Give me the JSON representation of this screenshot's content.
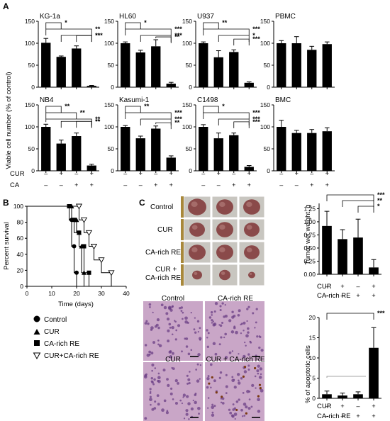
{
  "panel_labels": {
    "a": "A",
    "b": "B",
    "c": "C"
  },
  "panel_a": {
    "ylabel": "Viable cell number (% of control)",
    "yticks": [
      "0",
      "50",
      "100",
      "150"
    ],
    "row_labels": [
      "CUR",
      "CA"
    ],
    "signs": {
      "CUR": [
        "–",
        "+",
        "–",
        "+"
      ],
      "CA": [
        "–",
        "–",
        "+",
        "+"
      ]
    }
  },
  "panel_b": {
    "ylabel": "Percent survival",
    "xlabel": "Time (days)",
    "xticks": [
      "0",
      "10",
      "20",
      "30",
      "40"
    ],
    "yticks": [
      "0",
      "20",
      "40",
      "60",
      "80",
      "100"
    ],
    "legend": [
      {
        "label": "Control",
        "marker": "circle"
      },
      {
        "label": "CUR",
        "marker": "triangle-up"
      },
      {
        "label": "CA-rich RE",
        "marker": "square"
      },
      {
        "label": "CUR+CA-rich RE",
        "marker": "triangle-down-open"
      }
    ]
  },
  "panel_c": {
    "row_labels": [
      "Control",
      "CUR",
      "CA-rich RE",
      "CUR +",
      "CA-rich RE"
    ],
    "histology_labels": [
      "Control",
      "CA-rich RE",
      "CUR",
      "CUR + CA-rich RE"
    ],
    "weight_ylabel": "Tumor wet weight, g",
    "weight_yticks": [
      "0.00",
      "0.25",
      "0.50",
      "0.75",
      "1.00",
      "1.25"
    ],
    "apop_ylabel": "% of apoptotic cells",
    "apop_yticks": [
      "0",
      "5",
      "10",
      "15",
      "20"
    ],
    "row_labels_sign": [
      "CUR",
      "CA-rich RE"
    ],
    "signs": {
      "CUR": [
        "–",
        "+",
        "–",
        "+"
      ],
      "CA": [
        "–",
        "–",
        "+",
        "+"
      ]
    }
  },
  "chart_data": [
    {
      "type": "bar",
      "title": "KG-1a",
      "categories": [
        "-/-",
        "+/-",
        "-/+",
        "+/+"
      ],
      "values": [
        101,
        69,
        88,
        3
      ],
      "errors": [
        10,
        2,
        6,
        1
      ],
      "ylim": [
        0,
        150
      ],
      "significance": [
        {
          "from": 0,
          "to": 1,
          "label": "*"
        },
        {
          "from": 0,
          "to": 3,
          "label": "**"
        },
        {
          "from": 1,
          "to": 3,
          "label": "***"
        },
        {
          "from": 2,
          "to": 3,
          "label": "**"
        }
      ]
    },
    {
      "type": "bar",
      "title": "HL60",
      "categories": [
        "-/-",
        "+/-",
        "-/+",
        "+/+"
      ],
      "values": [
        100,
        79,
        93,
        8
      ],
      "errors": [
        3,
        5,
        15,
        3
      ],
      "ylim": [
        0,
        150
      ],
      "significance": [
        {
          "from": 0,
          "to": 1,
          "label": "*"
        },
        {
          "from": 0,
          "to": 3,
          "label": "***"
        },
        {
          "from": 1,
          "to": 3,
          "label": "***"
        },
        {
          "from": 2,
          "to": 3,
          "label": "**"
        }
      ]
    },
    {
      "type": "bar",
      "title": "U937",
      "categories": [
        "-/-",
        "+/-",
        "-/+",
        "+/+"
      ],
      "values": [
        100,
        68,
        80,
        10
      ],
      "errors": [
        3,
        15,
        5,
        2
      ],
      "ylim": [
        0,
        150
      ],
      "significance": [
        {
          "from": 0,
          "to": 1,
          "label": "**"
        },
        {
          "from": 0,
          "to": 3,
          "label": "***"
        },
        {
          "from": 1,
          "to": 3,
          "label": "*"
        },
        {
          "from": 2,
          "to": 3,
          "label": "***"
        }
      ]
    },
    {
      "type": "bar",
      "title": "PBMC",
      "categories": [
        "-/-",
        "+/-",
        "-/+",
        "+/+"
      ],
      "values": [
        100,
        100,
        85,
        98
      ],
      "errors": [
        6,
        15,
        8,
        5
      ],
      "ylim": [
        0,
        150
      ],
      "significance": []
    },
    {
      "type": "bar",
      "title": "NB4",
      "categories": [
        "-/-",
        "+/-",
        "-/+",
        "+/+"
      ],
      "values": [
        100,
        62,
        79,
        12
      ],
      "errors": [
        6,
        8,
        7,
        3
      ],
      "ylim": [
        0,
        150
      ],
      "significance": [
        {
          "from": 0,
          "to": 1,
          "label": "**"
        },
        {
          "from": 0,
          "to": 2,
          "label": "**"
        },
        {
          "from": 0,
          "to": 3,
          "label": "**"
        },
        {
          "from": 1,
          "to": 3,
          "label": "**"
        },
        {
          "from": 2,
          "to": 3,
          "label": "**"
        }
      ]
    },
    {
      "type": "bar",
      "title": "Kasumi-1",
      "categories": [
        "-/-",
        "+/-",
        "-/+",
        "+/+"
      ],
      "values": [
        100,
        74,
        96,
        30
      ],
      "errors": [
        3,
        5,
        6,
        4
      ],
      "ylim": [
        0,
        150
      ],
      "significance": [
        {
          "from": 0,
          "to": 1,
          "label": "**"
        },
        {
          "from": 0,
          "to": 3,
          "label": "***"
        },
        {
          "from": 1,
          "to": 3,
          "label": "***"
        },
        {
          "from": 2,
          "to": 3,
          "label": "**"
        }
      ]
    },
    {
      "type": "bar",
      "title": "C1498",
      "categories": [
        "-/-",
        "+/-",
        "-/+",
        "+/+"
      ],
      "values": [
        100,
        74,
        81,
        9
      ],
      "errors": [
        5,
        12,
        5,
        3
      ],
      "ylim": [
        0,
        150
      ],
      "significance": [
        {
          "from": 0,
          "to": 1,
          "label": "*"
        },
        {
          "from": 0,
          "to": 3,
          "label": "***"
        },
        {
          "from": 1,
          "to": 3,
          "label": "***"
        },
        {
          "from": 2,
          "to": 3,
          "label": "***"
        }
      ]
    },
    {
      "type": "bar",
      "title": "BMC",
      "categories": [
        "-/-",
        "+/-",
        "-/+",
        "+/+"
      ],
      "values": [
        100,
        86,
        86,
        90
      ],
      "errors": [
        15,
        6,
        8,
        8
      ],
      "ylim": [
        0,
        150
      ],
      "significance": []
    },
    {
      "type": "line",
      "step": true,
      "xlabel": "Time (days)",
      "ylabel": "Percent survival",
      "xlim": [
        0,
        40
      ],
      "ylim": [
        0,
        100
      ],
      "series": [
        {
          "name": "Control",
          "x": [
            0,
            17,
            18,
            19,
            20
          ],
          "y": [
            100,
            83,
            50,
            17,
            0
          ]
        },
        {
          "name": "CUR",
          "x": [
            0,
            18,
            20,
            21,
            22,
            23
          ],
          "y": [
            100,
            83,
            67,
            50,
            17,
            0
          ]
        },
        {
          "name": "CA-rich RE",
          "x": [
            0,
            17,
            19,
            21,
            23,
            25
          ],
          "y": [
            100,
            83,
            67,
            50,
            17,
            0
          ]
        },
        {
          "name": "CUR+CA-rich RE",
          "x": [
            0,
            21,
            23,
            25,
            27,
            30,
            34
          ],
          "y": [
            100,
            83,
            67,
            50,
            33,
            17,
            0
          ]
        }
      ]
    },
    {
      "type": "bar",
      "ylabel": "Tumor wet weight, g",
      "categories": [
        "-/-",
        "+/-",
        "-/+",
        "+/+"
      ],
      "values": [
        0.92,
        0.67,
        0.7,
        0.13
      ],
      "errors": [
        0.28,
        0.18,
        0.35,
        0.15
      ],
      "ylim": [
        0,
        1.35
      ],
      "significance": [
        {
          "from": 0,
          "to": 3,
          "label": "***"
        },
        {
          "from": 1,
          "to": 3,
          "label": "**"
        },
        {
          "from": 2,
          "to": 3,
          "label": "*"
        }
      ]
    },
    {
      "type": "bar",
      "ylabel": "% of apoptotic cells",
      "categories": [
        "-/-",
        "+/-",
        "-/+",
        "+/+"
      ],
      "values": [
        1.0,
        0.7,
        1.0,
        12.5
      ],
      "errors": [
        0.8,
        0.6,
        0.6,
        5.0
      ],
      "ylim": [
        0,
        20
      ],
      "significance": [
        {
          "from": 0,
          "to": 3,
          "label": "***"
        }
      ]
    }
  ]
}
